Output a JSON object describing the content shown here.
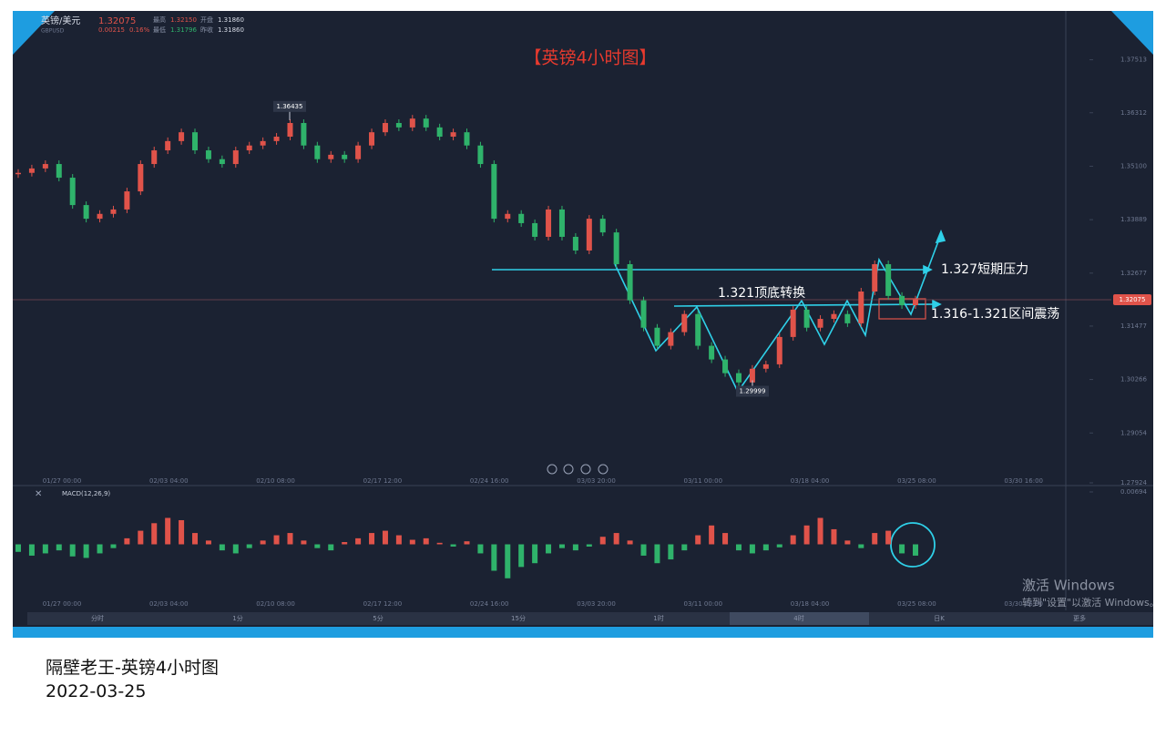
{
  "header": {
    "symbol": "英镑/美元",
    "code": "GBPUSD",
    "price": "1.32075",
    "change": "0.00215",
    "change_pct": "0.16%",
    "high_label": "最高",
    "high": "1.32150",
    "open_label": "开盘",
    "open": "1.31860",
    "low_label": "最低",
    "low": "1.31796",
    "prev_close_label": "昨收",
    "prev_close": "1.31860"
  },
  "chart_data": [
    {
      "type": "candlestick",
      "title": "【英镑4小时图】",
      "closes": [
        1.3495,
        1.3505,
        1.3515,
        1.3484,
        1.3422,
        1.3391,
        1.3402,
        1.3412,
        1.3453,
        1.3515,
        1.3546,
        1.3567,
        1.3587,
        1.3546,
        1.3526,
        1.3515,
        1.3546,
        1.3557,
        1.3567,
        1.3577,
        1.3608,
        1.3557,
        1.3526,
        1.3536,
        1.3526,
        1.3557,
        1.3587,
        1.3608,
        1.3598,
        1.3618,
        1.3598,
        1.3577,
        1.3587,
        1.3557,
        1.3515,
        1.3391,
        1.3402,
        1.3381,
        1.335,
        1.3412,
        1.335,
        1.3319,
        1.3391,
        1.336,
        1.3288,
        1.3206,
        1.3144,
        1.3103,
        1.3134,
        1.3175,
        1.3103,
        1.3072,
        1.3041,
        1.302,
        1.3051,
        1.3061,
        1.3123,
        1.3185,
        1.3144,
        1.3164,
        1.3175,
        1.3154,
        1.3226,
        1.3288,
        1.3216,
        1.3195,
        1.3208
      ],
      "color_up": "#e0534a",
      "color_down": "#2fb36b",
      "ylim": [
        1.27924,
        1.3862
      ],
      "yticks": [
        1.37513,
        1.36312,
        {
          "value": 1.351,
          "label": "1.35100"
        },
        1.33889,
        1.32677,
        1.31477,
        1.30266,
        1.29054,
        1.27924
      ],
      "x_labels": [
        "01/27 00:00",
        "02/03 04:00",
        "02/10 08:00",
        "02/17 12:00",
        "02/24 16:00",
        "03/03 20:00",
        "03/11 00:00",
        "03/18 04:00",
        "03/25 08:00",
        "03/30 16:00"
      ],
      "current_price": 1.32075,
      "high_point": 1.36435,
      "low_point": 1.29999,
      "annotations": [
        "1.327短期压力",
        "1.321顶底转换",
        "1.316-1.321区间震荡"
      ]
    },
    {
      "type": "bar",
      "title": "MACD(12,26,9)",
      "values": [
        -0.001,
        -0.0015,
        -0.0012,
        -0.0008,
        -0.0016,
        -0.0018,
        -0.0012,
        -0.0005,
        0.0008,
        0.0018,
        0.0028,
        0.0035,
        0.0032,
        0.0015,
        0.0005,
        -0.0008,
        -0.0012,
        -0.0005,
        0.0005,
        0.0012,
        0.0015,
        0.0005,
        -0.0005,
        -0.0008,
        0.0003,
        0.0008,
        0.0015,
        0.0018,
        0.0012,
        0.0006,
        0.0008,
        0.0002,
        -0.0003,
        0.0004,
        -0.0012,
        -0.0035,
        -0.0045,
        -0.003,
        -0.0025,
        -0.0012,
        -0.0005,
        -0.0008,
        -0.0003,
        0.001,
        0.0015,
        0.0005,
        -0.0015,
        -0.0025,
        -0.002,
        -0.0008,
        0.0012,
        0.0025,
        0.0015,
        -0.0008,
        -0.0012,
        -0.0008,
        -0.0004,
        0.0012,
        0.0025,
        0.0035,
        0.002,
        0.0005,
        -0.0005,
        0.0015,
        0.0018,
        -0.0012,
        -0.0015
      ],
      "ylim": [
        -0.00694,
        0.00694
      ],
      "yticks": [
        0.00694
      ]
    }
  ],
  "toolbar": [
    "分时",
    "1分",
    "5分",
    "15分",
    "1时",
    "4时",
    "日K",
    "更多"
  ],
  "watermark": {
    "title": "激活 Windows",
    "text": "转到\"设置\"以激活 Windows。"
  },
  "caption": {
    "title": "隔壁老王-英镑4小时图",
    "date": "2022-03-25"
  }
}
